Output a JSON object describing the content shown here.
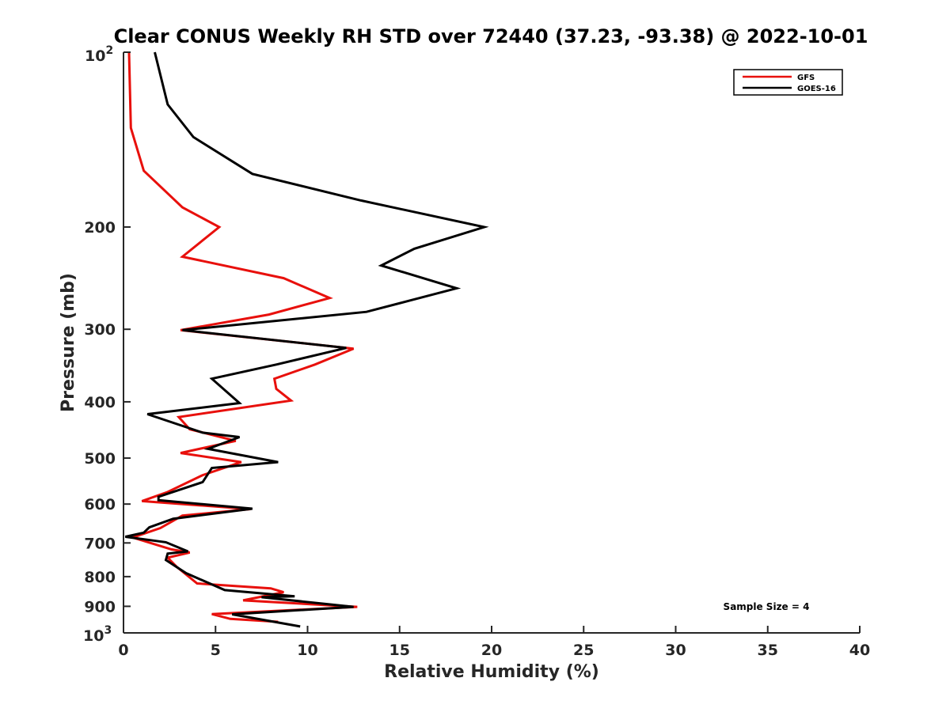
{
  "chart_data": {
    "type": "line",
    "title": "Clear CONUS Weekly RH STD over 72440 (37.23, -93.38) @ 2022-10-01",
    "xlabel": "Relative Humidity (%)",
    "ylabel": "Pressure (mb)",
    "xlim": [
      0,
      40
    ],
    "ylim": [
      100,
      1000
    ],
    "y_scale": "log",
    "y_reversed": true,
    "x_ticks": [
      0,
      5,
      10,
      15,
      20,
      25,
      30,
      35,
      40
    ],
    "x_tick_labels": [
      "0",
      "5",
      "10",
      "15",
      "20",
      "25",
      "30",
      "35",
      "40"
    ],
    "y_ticks": [
      200,
      300,
      400,
      500,
      600,
      700,
      800,
      900
    ],
    "y_tick_labels": [
      "200",
      "300",
      "400",
      "500",
      "600",
      "700",
      "800",
      "900"
    ],
    "y_top_label": {
      "base": "10",
      "exp": "2"
    },
    "y_bottom_label": {
      "base": "10",
      "exp": "3"
    },
    "grid": false,
    "legend_position": "top-right",
    "annotation": "Sample Size = 4",
    "series": [
      {
        "name": "GFS",
        "color": "#e8100c",
        "points": [
          [
            0.3,
            100
          ],
          [
            0.4,
            135
          ],
          [
            1.1,
            160
          ],
          [
            3.2,
            185
          ],
          [
            5.2,
            200
          ],
          [
            3.2,
            225
          ],
          [
            8.7,
            245
          ],
          [
            11.2,
            265
          ],
          [
            7.9,
            283
          ],
          [
            3.1,
            301
          ],
          [
            12.5,
            324
          ],
          [
            10.4,
            345
          ],
          [
            8.2,
            365
          ],
          [
            8.3,
            380
          ],
          [
            9.1,
            398
          ],
          [
            3.0,
            425
          ],
          [
            3.6,
            446
          ],
          [
            6.1,
            467
          ],
          [
            3.1,
            490
          ],
          [
            6.4,
            508
          ],
          [
            4.3,
            535
          ],
          [
            2.4,
            572
          ],
          [
            1.0,
            593
          ],
          [
            6.9,
            612
          ],
          [
            3.2,
            628
          ],
          [
            2.0,
            660
          ],
          [
            0.5,
            685
          ],
          [
            2.6,
            718
          ],
          [
            3.6,
            727
          ],
          [
            2.4,
            742
          ],
          [
            2.9,
            770
          ],
          [
            4.0,
            822
          ],
          [
            8.0,
            838
          ],
          [
            8.7,
            851
          ],
          [
            6.5,
            879
          ],
          [
            12.7,
            902
          ],
          [
            4.8,
            928
          ],
          [
            5.8,
            946
          ],
          [
            8.4,
            957
          ]
        ]
      },
      {
        "name": "GOES-16",
        "color": "#000000",
        "points": [
          [
            1.7,
            100
          ],
          [
            2.4,
            123
          ],
          [
            3.8,
            140
          ],
          [
            7.0,
            162
          ],
          [
            12.9,
            180
          ],
          [
            19.6,
            200
          ],
          [
            15.8,
            218
          ],
          [
            14.0,
            233
          ],
          [
            18.1,
            255
          ],
          [
            13.2,
            280
          ],
          [
            3.2,
            301
          ],
          [
            12.1,
            323
          ],
          [
            8.3,
            345
          ],
          [
            4.8,
            365
          ],
          [
            6.3,
            402
          ],
          [
            1.3,
            420
          ],
          [
            4.3,
            452
          ],
          [
            6.3,
            460
          ],
          [
            4.6,
            482
          ],
          [
            8.4,
            508
          ],
          [
            4.8,
            520
          ],
          [
            4.3,
            550
          ],
          [
            1.9,
            583
          ],
          [
            1.9,
            591
          ],
          [
            7.0,
            611
          ],
          [
            2.7,
            636
          ],
          [
            1.4,
            658
          ],
          [
            1.1,
            672
          ],
          [
            0.1,
            683
          ],
          [
            2.3,
            698
          ],
          [
            3.5,
            724
          ],
          [
            2.4,
            730
          ],
          [
            2.3,
            749
          ],
          [
            3.4,
            789
          ],
          [
            5.5,
            844
          ],
          [
            9.3,
            865
          ],
          [
            7.5,
            868
          ],
          [
            12.5,
            902
          ],
          [
            5.9,
            929
          ],
          [
            9.6,
            975
          ]
        ]
      }
    ]
  }
}
